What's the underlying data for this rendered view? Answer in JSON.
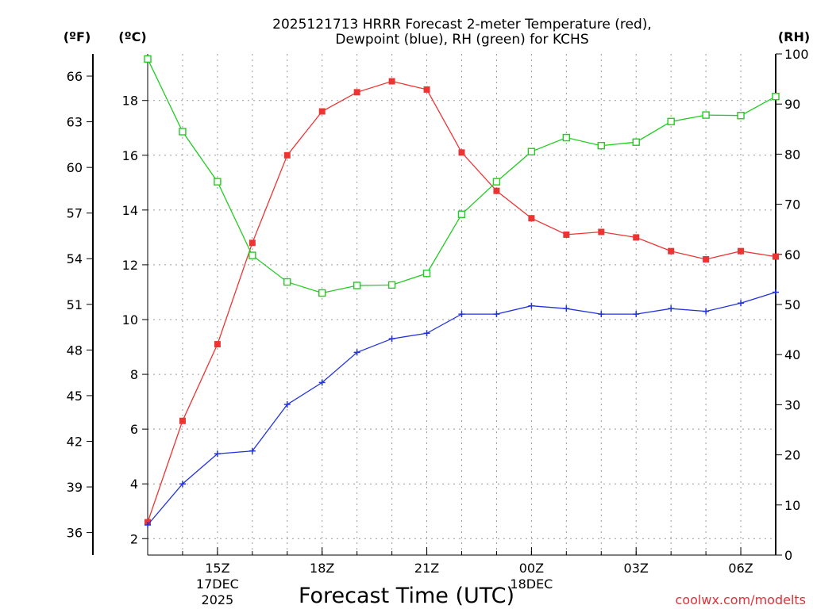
{
  "chart_data": {
    "type": "line",
    "title_line1": "2025121713 HRRR Forecast 2-meter Temperature (red),",
    "title_line2": "Dewpoint (blue), RH (green) for KCHS",
    "xlabel": "Forecast Time (UTC)",
    "left_outer_unit": "(ºF)",
    "left_inner_unit": "(ºC)",
    "right_unit": "(RH)",
    "watermark": "coolwx.com/modelts",
    "x_hours": [
      13,
      14,
      15,
      16,
      17,
      18,
      19,
      20,
      21,
      22,
      23,
      24,
      25,
      26,
      27,
      28,
      29,
      30,
      31
    ],
    "x_range": [
      13,
      31
    ],
    "x_ticks": [
      {
        "hour": 15,
        "label": "15Z",
        "sub1": "17DEC",
        "sub2": "2025"
      },
      {
        "hour": 18,
        "label": "18Z",
        "sub1": "",
        "sub2": ""
      },
      {
        "hour": 21,
        "label": "21Z",
        "sub1": "",
        "sub2": ""
      },
      {
        "hour": 24,
        "label": "00Z",
        "sub1": "18DEC",
        "sub2": ""
      },
      {
        "hour": 27,
        "label": "03Z",
        "sub1": "",
        "sub2": ""
      },
      {
        "hour": 30,
        "label": "06Z",
        "sub1": "",
        "sub2": ""
      }
    ],
    "celsius_range": [
      1.4,
      19.7
    ],
    "celsius_ticks": [
      "2",
      "4",
      "6",
      "8",
      "10",
      "12",
      "14",
      "16",
      "18"
    ],
    "fahrenheit_ticks": [
      "36",
      "39",
      "42",
      "45",
      "48",
      "51",
      "54",
      "57",
      "60",
      "63",
      "66"
    ],
    "rh_range": [
      0,
      100
    ],
    "rh_ticks": [
      "0",
      "10",
      "20",
      "30",
      "40",
      "50",
      "60",
      "70",
      "80",
      "90",
      "100"
    ],
    "series": [
      {
        "name": "Temperature",
        "unit": "C",
        "color": "#ee3333",
        "marker": "filled-square",
        "values": [
          2.6,
          6.3,
          9.1,
          12.8,
          16.0,
          17.6,
          18.3,
          18.7,
          18.4,
          16.1,
          14.7,
          13.7,
          13.1,
          13.2,
          13.0,
          12.5,
          12.2,
          12.5,
          12.3
        ]
      },
      {
        "name": "Dewpoint",
        "unit": "C",
        "color": "#2233dd",
        "marker": "plus",
        "values": [
          2.5,
          4.0,
          5.1,
          5.2,
          6.9,
          7.7,
          8.8,
          9.3,
          9.5,
          10.2,
          10.2,
          10.5,
          10.4,
          10.2,
          10.2,
          10.4,
          10.3,
          10.6,
          11.0
        ]
      },
      {
        "name": "RH",
        "unit": "%",
        "color": "#22cc22",
        "marker": "open-square",
        "values": [
          99,
          84.5,
          74.5,
          59.8,
          54.5,
          52.3,
          53.8,
          53.9,
          56.2,
          68.0,
          74.5,
          80.5,
          83.3,
          81.7,
          82.4,
          86.5,
          87.8,
          87.7,
          91.5
        ]
      }
    ]
  }
}
